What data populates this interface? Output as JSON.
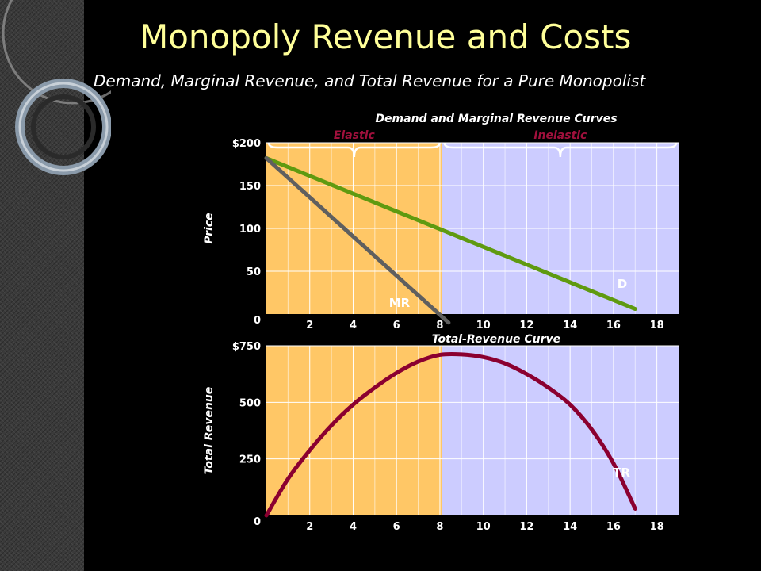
{
  "slide": {
    "title": "Monopoly Revenue and Costs",
    "subtitle": "Demand, Marginal Revenue, and Total Revenue for a Pure Monopolist"
  },
  "colors": {
    "elastic_region": "#ffc766",
    "inelastic_region": "#ccccff",
    "demand": "#5f9a10",
    "marginal_revenue": "#5f5f5f",
    "total_revenue": "#8b0030",
    "region_label": "#a0103c",
    "axis_text": "#ffffff"
  },
  "chart_data": [
    {
      "type": "line",
      "title": "Demand and Marginal Revenue Curves",
      "xlabel": "",
      "ylabel": "Price",
      "xlim": [
        0,
        19
      ],
      "ylim": [
        0,
        200
      ],
      "x_ticks": [
        2,
        4,
        6,
        8,
        10,
        12,
        14,
        16,
        18
      ],
      "y_ticks": [
        0,
        50,
        100,
        150,
        200
      ],
      "y_tick_labels": [
        "0",
        "50",
        "100",
        "150",
        "$200"
      ],
      "grid": true,
      "regions": [
        {
          "label": "Elastic",
          "x_range": [
            0,
            8.1
          ]
        },
        {
          "label": "Inelastic",
          "x_range": [
            8.1,
            19
          ]
        }
      ],
      "series": [
        {
          "name": "D",
          "x": [
            0,
            17
          ],
          "y": [
            182,
            6
          ]
        },
        {
          "name": "MR",
          "x": [
            0,
            8.4
          ],
          "y": [
            182,
            -10
          ]
        }
      ]
    },
    {
      "type": "line",
      "title": "Total-Revenue Curve",
      "xlabel": "",
      "ylabel": "Total Revenue",
      "xlim": [
        0,
        19
      ],
      "ylim": [
        0,
        750
      ],
      "x_ticks": [
        2,
        4,
        6,
        8,
        10,
        12,
        14,
        16,
        18
      ],
      "y_ticks": [
        0,
        250,
        500,
        750
      ],
      "y_tick_labels": [
        "0",
        "250",
        "500",
        "$750"
      ],
      "grid": true,
      "regions": [
        {
          "label": "",
          "x_range": [
            0,
            8.1
          ]
        },
        {
          "label": "",
          "x_range": [
            8.1,
            19
          ]
        }
      ],
      "series": [
        {
          "name": "TR",
          "x": [
            0,
            1,
            2,
            3,
            4,
            5,
            6,
            7,
            8,
            9,
            10,
            11,
            12,
            13,
            14,
            15,
            16,
            17
          ],
          "y": [
            0,
            162,
            288,
            398,
            490,
            565,
            630,
            680,
            710,
            712,
            700,
            672,
            625,
            565,
            490,
            380,
            230,
            30
          ]
        }
      ]
    }
  ]
}
